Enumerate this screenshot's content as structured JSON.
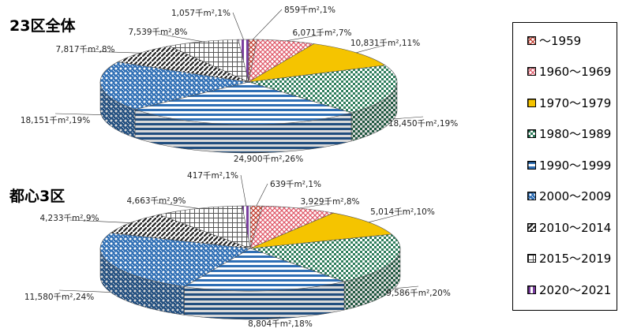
{
  "chart_data": [
    {
      "type": "pie",
      "title": "23区全体",
      "unit": "千m²",
      "slices": [
        {
          "label": "〜1959",
          "value": 859,
          "pct": "1%",
          "data_label": "859千m²,1%"
        },
        {
          "label": "1960〜1969",
          "value": 6071,
          "pct": "7%",
          "data_label": "6,071千m²,7%"
        },
        {
          "label": "1970〜1979",
          "value": 10831,
          "pct": "11%",
          "data_label": "10,831千m²,11%"
        },
        {
          "label": "1980〜1989",
          "value": 18450,
          "pct": "19%",
          "data_label": "18,450千m²,19%"
        },
        {
          "label": "1990〜1999",
          "value": 24900,
          "pct": "26%",
          "data_label": "24,900千m²,26%"
        },
        {
          "label": "2000〜2009",
          "value": 18151,
          "pct": "19%",
          "data_label": "18,151千m²,19%"
        },
        {
          "label": "2010〜2014",
          "value": 7817,
          "pct": "8%",
          "data_label": "7,817千m²,8%"
        },
        {
          "label": "2015〜2019",
          "value": 7539,
          "pct": "8%",
          "data_label": "7,539千m²,8%"
        },
        {
          "label": "2020〜2021",
          "value": 1057,
          "pct": "1%",
          "data_label": "1,057千m²,1%"
        }
      ]
    },
    {
      "type": "pie",
      "title": "都心3区",
      "unit": "千m²",
      "slices": [
        {
          "label": "〜1959",
          "value": 639,
          "pct": "1%",
          "data_label": "639千m²,1%"
        },
        {
          "label": "1960〜1969",
          "value": 3929,
          "pct": "8%",
          "data_label": "3,929千m²,8%"
        },
        {
          "label": "1970〜1979",
          "value": 5014,
          "pct": "10%",
          "data_label": "5,014千m²,10%"
        },
        {
          "label": "1980〜1989",
          "value": 9586,
          "pct": "20%",
          "data_label": "9,586千m²,20%"
        },
        {
          "label": "1990〜1999",
          "value": 8804,
          "pct": "18%",
          "data_label": "8,804千m²,18%"
        },
        {
          "label": "2000〜2009",
          "value": 11580,
          "pct": "24%",
          "data_label": "11,580千m²,24%"
        },
        {
          "label": "2010〜2014",
          "value": 4233,
          "pct": "9%",
          "data_label": "4,233千m²,9%"
        },
        {
          "label": "2015〜2019",
          "value": 4663,
          "pct": "9%",
          "data_label": "4,663千m²,9%"
        },
        {
          "label": "2020〜2021",
          "value": 417,
          "pct": "1%",
          "data_label": "417千m²,1%"
        }
      ]
    }
  ],
  "legend": {
    "position": "right",
    "items": [
      {
        "label": "〜1959",
        "color": "#c0392b",
        "pattern": "cross"
      },
      {
        "label": "1960〜1969",
        "color": "#e05a6a",
        "pattern": "cross"
      },
      {
        "label": "1970〜1979",
        "color": "#f5c400",
        "pattern": "solid"
      },
      {
        "label": "1980〜1989",
        "color": "#2e7d5b",
        "pattern": "checker"
      },
      {
        "label": "1990〜1999",
        "color": "#2f6fb5",
        "pattern": "hlines"
      },
      {
        "label": "2000〜2009",
        "color": "#2f6fb5",
        "pattern": "weave"
      },
      {
        "label": "2010〜2014",
        "color": "#222222",
        "pattern": "diag"
      },
      {
        "label": "2015〜2019",
        "color": "#555555",
        "pattern": "grid"
      },
      {
        "label": "2020〜2021",
        "color": "#7b3fa0",
        "pattern": "vlines"
      }
    ]
  }
}
